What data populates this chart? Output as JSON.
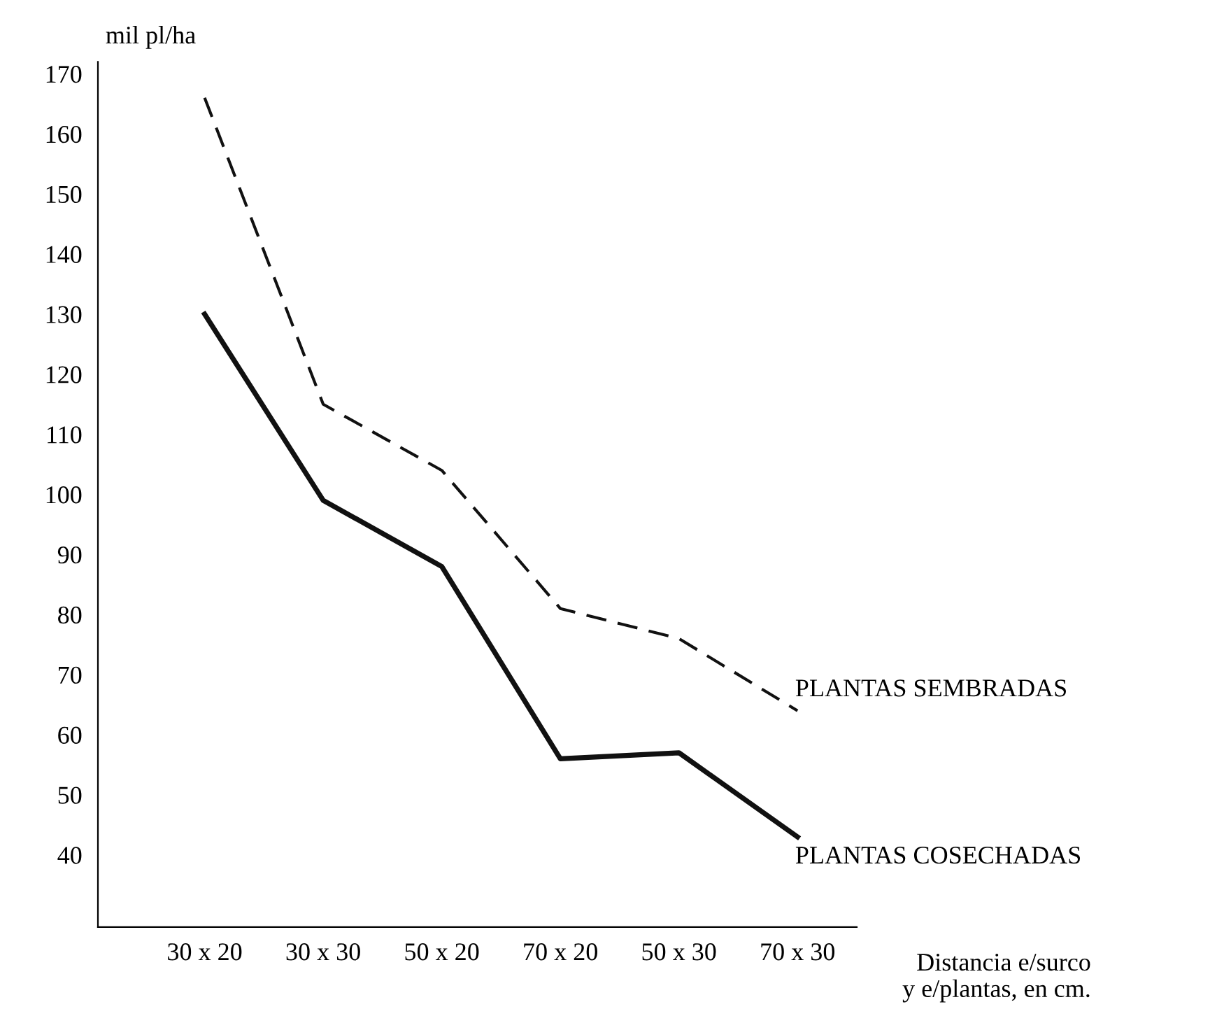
{
  "chart_data": {
    "type": "line",
    "categories": [
      "30 x 20",
      "30 x 30",
      "50 x 20",
      "70 x 20",
      "50 x 30",
      "70 x 30"
    ],
    "series": [
      {
        "name": "PLANTAS SEMBRADAS",
        "color": "#111111",
        "line_style": "dashed",
        "values": [
          166,
          115,
          104,
          81,
          76,
          64
        ]
      },
      {
        "name": "PLANTAS COSECHADAS",
        "color": "#111111",
        "line_style": "solid",
        "values": [
          130,
          99,
          88,
          56,
          57,
          43
        ]
      }
    ],
    "ylabel": "mil pl/ha",
    "xlabel": "Distancia e/surco\ny e/plantas, en cm.",
    "ylim": [
      28,
      172
    ],
    "yticks": [
      40,
      50,
      60,
      70,
      80,
      90,
      100,
      110,
      120,
      130,
      140,
      150,
      160,
      170
    ],
    "grid": false,
    "legend": false,
    "marker": "none"
  }
}
